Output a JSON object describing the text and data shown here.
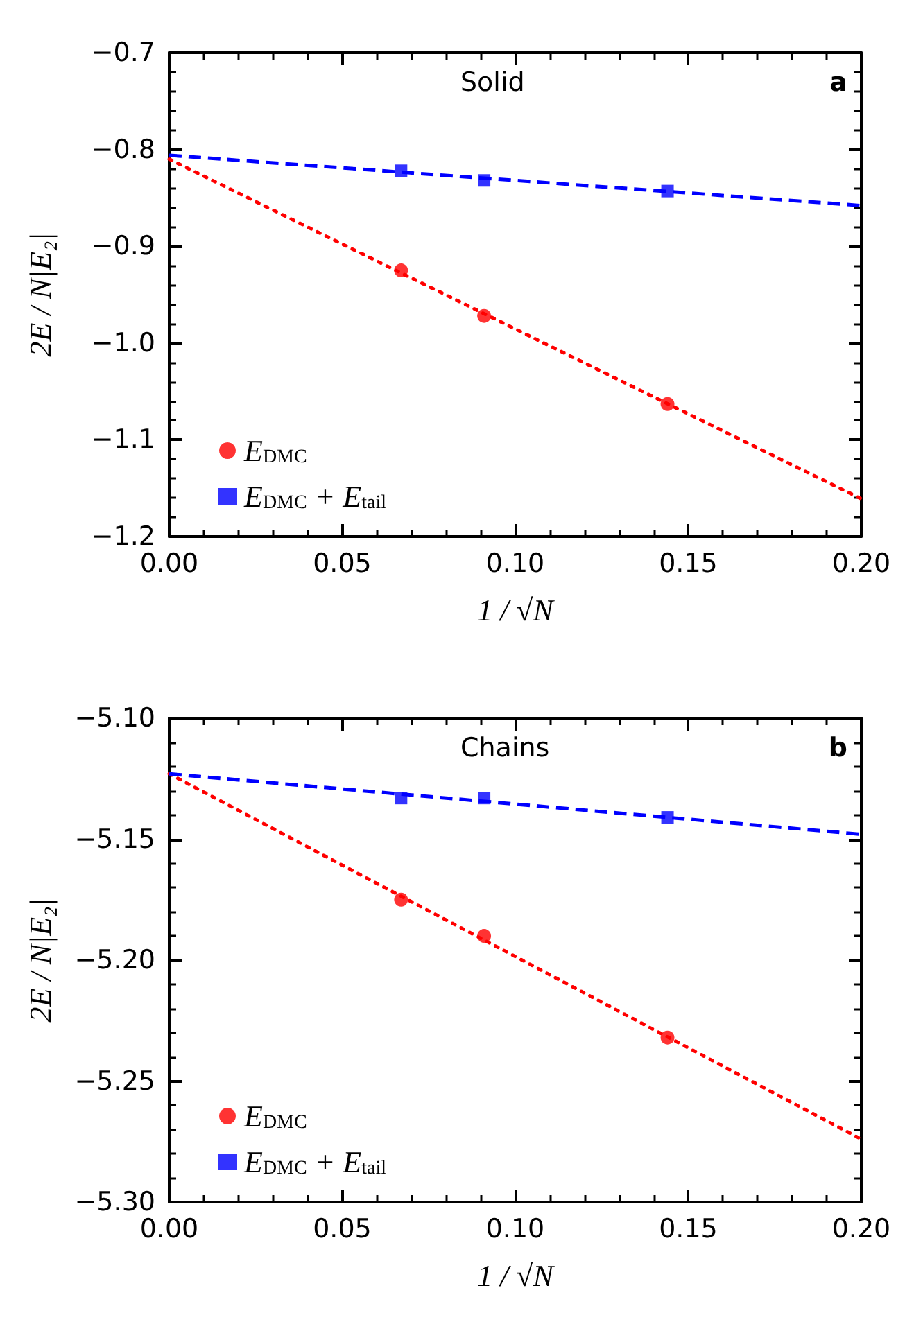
{
  "chart_data": [
    {
      "type": "scatter",
      "xlabel": "1 / √N",
      "ylabel": "2E / N|E₂|",
      "annotations": [
        "Solid",
        "a"
      ],
      "legend": "bottom left",
      "grid": false,
      "xlim": [
        0,
        0.2
      ],
      "xticks": [
        {
          "value": 0,
          "label": "0.00"
        },
        {
          "value": 0.05,
          "label": "0.05"
        },
        {
          "value": 0.1,
          "label": "0.10"
        },
        {
          "value": 0.15,
          "label": "0.15"
        },
        {
          "value": 0.2,
          "label": "0.20"
        }
      ],
      "ylim": [
        -1.2,
        -0.7
      ],
      "yticks": [
        {
          "value": -1.2,
          "label": "−1.2"
        },
        {
          "value": -1.1,
          "label": "−1.1"
        },
        {
          "value": -1.0,
          "label": "−1.0"
        },
        {
          "value": -0.9,
          "label": "−0.9"
        },
        {
          "value": -0.8,
          "label": "−0.8"
        },
        {
          "value": -0.7,
          "label": "−0.7"
        }
      ],
      "series": [
        {
          "name": "E$_{DMC}$",
          "marker": "circle",
          "color": "#ff0000",
          "x": [
            0.067,
            0.091,
            0.144
          ],
          "values": [
            -0.925,
            -0.972,
            -1.063
          ]
        },
        {
          "name": "E$_{DMC}$ + E$_{tail}$",
          "marker": "square",
          "color": "#0000ff",
          "x": [
            0.067,
            0.091,
            0.144
          ],
          "values": [
            -0.822,
            -0.832,
            -0.843
          ]
        },
        {
          "type": "line",
          "marker": "none",
          "line_style": "dotted",
          "color": "#ff0000",
          "x": [
            0,
            0.2
          ],
          "values": [
            -0.81,
            -1.161
          ]
        },
        {
          "type": "line",
          "marker": "none",
          "line_style": "dashed",
          "color": "#0000ff",
          "x": [
            0,
            0.2
          ],
          "values": [
            -0.806,
            -0.858
          ]
        }
      ]
    },
    {
      "type": "scatter",
      "xlabel": "1 / √N",
      "ylabel": "2E / N|E₂|",
      "annotations": [
        "Chains",
        "b"
      ],
      "legend": "bottom left",
      "grid": false,
      "xlim": [
        0,
        0.2
      ],
      "xticks": [
        {
          "value": 0,
          "label": "0.00"
        },
        {
          "value": 0.05,
          "label": "0.05"
        },
        {
          "value": 0.1,
          "label": "0.10"
        },
        {
          "value": 0.15,
          "label": "0.15"
        },
        {
          "value": 0.2,
          "label": "0.20"
        }
      ],
      "ylim": [
        -5.3,
        -5.1
      ],
      "yticks": [
        {
          "value": -5.3,
          "label": "−5.30"
        },
        {
          "value": -5.25,
          "label": "−5.25"
        },
        {
          "value": -5.2,
          "label": "−5.20"
        },
        {
          "value": -5.15,
          "label": "−5.15"
        },
        {
          "value": -5.1,
          "label": "−5.10"
        }
      ],
      "series": [
        {
          "name": "E$_{DMC}$",
          "marker": "circle",
          "color": "#ff0000",
          "x": [
            0.067,
            0.091,
            0.144
          ],
          "values": [
            -5.175,
            -5.19,
            -5.232
          ]
        },
        {
          "name": "E$_{DMC}$ + E$_{tail}$",
          "marker": "square",
          "color": "#0000ff",
          "x": [
            0.067,
            0.091,
            0.144
          ],
          "values": [
            -5.133,
            -5.133,
            -5.141
          ]
        },
        {
          "type": "line",
          "marker": "none",
          "line_style": "dotted",
          "color": "#ff0000",
          "x": [
            0,
            0.2
          ],
          "values": [
            -5.123,
            -5.274
          ]
        },
        {
          "type": "line",
          "marker": "none",
          "line_style": "dashed",
          "color": "#0000ff",
          "x": [
            0,
            0.2
          ],
          "values": [
            -5.123,
            -5.148
          ]
        }
      ]
    }
  ]
}
